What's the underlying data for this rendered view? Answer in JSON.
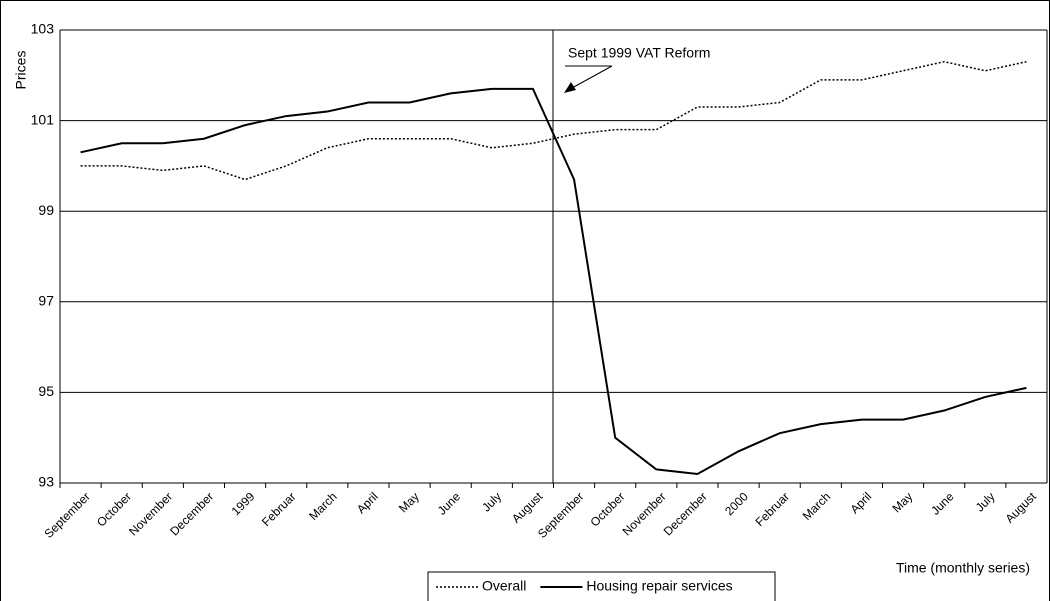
{
  "chart_data": {
    "type": "line",
    "y_label": "Prices",
    "x_label": "Time (monthly series)",
    "annotation": "Sept 1999 VAT Reform",
    "categories": [
      "September",
      "October",
      "November",
      "December",
      "1999",
      "Februar",
      "March",
      "April",
      "May",
      "June",
      "July",
      "August",
      "September",
      "October",
      "November",
      "December",
      "2000",
      "Februar",
      "March",
      "April",
      "May",
      "June",
      "July",
      "August"
    ],
    "series": [
      {
        "name": "Overall",
        "color": "#000000",
        "dash": "dotted",
        "values": [
          100.0,
          100.0,
          99.9,
          100.0,
          99.7,
          100.0,
          100.4,
          100.6,
          100.6,
          100.6,
          100.4,
          100.5,
          100.7,
          100.8,
          100.8,
          101.3,
          101.3,
          101.4,
          101.9,
          101.9,
          102.1,
          102.3,
          102.1,
          102.3
        ]
      },
      {
        "name": "Housing repair services",
        "color": "#000000",
        "dash": "solid",
        "values": [
          100.3,
          100.5,
          100.5,
          100.6,
          100.9,
          101.1,
          101.2,
          101.4,
          101.4,
          101.6,
          101.7,
          101.7,
          99.7,
          94.0,
          93.3,
          93.2,
          93.7,
          94.1,
          94.3,
          94.4,
          94.4,
          94.6,
          94.9,
          95.1
        ]
      }
    ],
    "ylim": [
      93,
      103
    ],
    "yticks": [
      93,
      95,
      97,
      99,
      101,
      103
    ],
    "grid": true,
    "legend": "bottom"
  }
}
